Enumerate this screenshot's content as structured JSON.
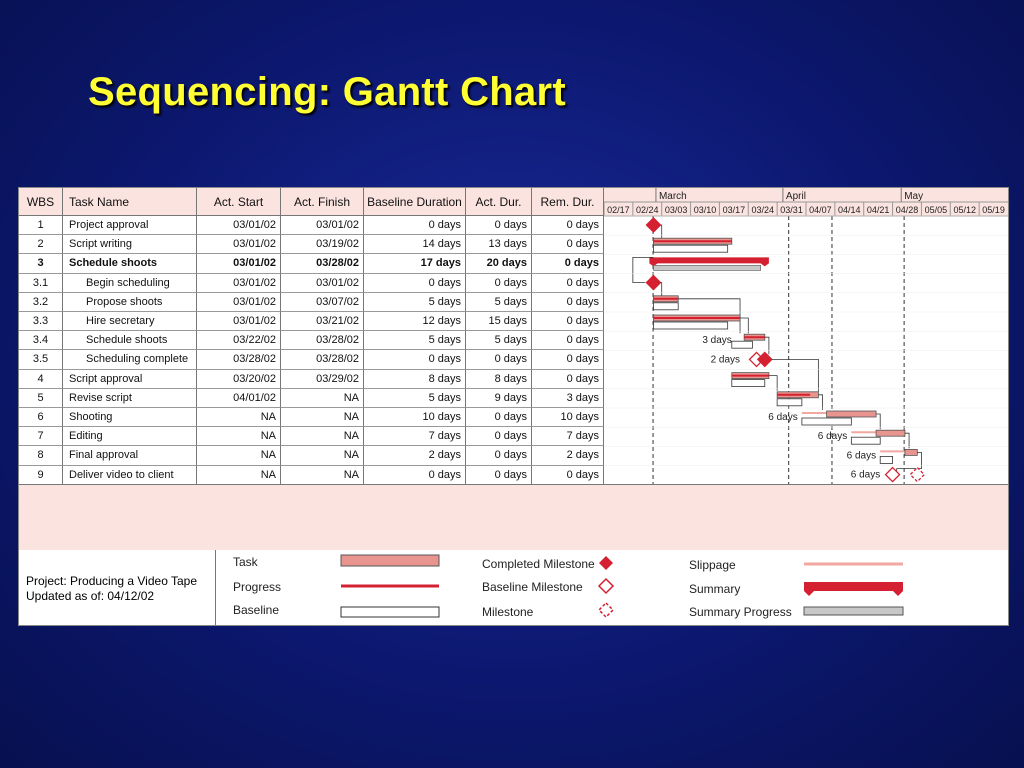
{
  "slide": {
    "title": "Sequencing: Gantt Chart"
  },
  "table": {
    "headers": [
      "WBS",
      "Task Name",
      "Act. Start",
      "Act. Finish",
      "Baseline Duration",
      "Act. Dur.",
      "Rem. Dur."
    ],
    "rows": [
      {
        "wbs": "1",
        "name": "Project approval",
        "start": "03/01/02",
        "finish": "03/01/02",
        "baseline": "0 days",
        "act": "0 days",
        "rem": "0 days",
        "bold": false,
        "indent": false
      },
      {
        "wbs": "2",
        "name": "Script writing",
        "start": "03/01/02",
        "finish": "03/19/02",
        "baseline": "14 days",
        "act": "13 days",
        "rem": "0 days",
        "bold": false,
        "indent": false
      },
      {
        "wbs": "3",
        "name": "Schedule shoots",
        "start": "03/01/02",
        "finish": "03/28/02",
        "baseline": "17 days",
        "act": "20 days",
        "rem": "0 days",
        "bold": true,
        "indent": false
      },
      {
        "wbs": "3.1",
        "name": "Begin scheduling",
        "start": "03/01/02",
        "finish": "03/01/02",
        "baseline": "0 days",
        "act": "0 days",
        "rem": "0 days",
        "bold": false,
        "indent": true
      },
      {
        "wbs": "3.2",
        "name": "Propose shoots",
        "start": "03/01/02",
        "finish": "03/07/02",
        "baseline": "5 days",
        "act": "5 days",
        "rem": "0 days",
        "bold": false,
        "indent": true
      },
      {
        "wbs": "3.3",
        "name": "Hire secretary",
        "start": "03/01/02",
        "finish": "03/21/02",
        "baseline": "12 days",
        "act": "15 days",
        "rem": "0 days",
        "bold": false,
        "indent": true
      },
      {
        "wbs": "3.4",
        "name": "Schedule shoots",
        "start": "03/22/02",
        "finish": "03/28/02",
        "baseline": "5 days",
        "act": "5 days",
        "rem": "0 days",
        "bold": false,
        "indent": true
      },
      {
        "wbs": "3.5",
        "name": "Scheduling complete",
        "start": "03/28/02",
        "finish": "03/28/02",
        "baseline": "0 days",
        "act": "0 days",
        "rem": "0 days",
        "bold": false,
        "indent": true
      },
      {
        "wbs": "4",
        "name": "Script approval",
        "start": "03/20/02",
        "finish": "03/29/02",
        "baseline": "8 days",
        "act": "8 days",
        "rem": "0 days",
        "bold": false,
        "indent": false
      },
      {
        "wbs": "5",
        "name": "Revise script",
        "start": "04/01/02",
        "finish": "NA",
        "baseline": "5 days",
        "act": "9 days",
        "rem": "3 days",
        "bold": false,
        "indent": false
      },
      {
        "wbs": "6",
        "name": "Shooting",
        "start": "NA",
        "finish": "NA",
        "baseline": "10 days",
        "act": "0 days",
        "rem": "10 days",
        "bold": false,
        "indent": false
      },
      {
        "wbs": "7",
        "name": "Editing",
        "start": "NA",
        "finish": "NA",
        "baseline": "7 days",
        "act": "0 days",
        "rem": "7 days",
        "bold": false,
        "indent": false
      },
      {
        "wbs": "8",
        "name": "Final approval",
        "start": "NA",
        "finish": "NA",
        "baseline": "2 days",
        "act": "0 days",
        "rem": "2 days",
        "bold": false,
        "indent": false
      },
      {
        "wbs": "9",
        "name": "Deliver video to client",
        "start": "NA",
        "finish": "NA",
        "baseline": "0 days",
        "act": "0 days",
        "rem": "0 days",
        "bold": false,
        "indent": false
      }
    ]
  },
  "timeline": {
    "months": [
      "March",
      "April",
      "May"
    ],
    "weeks": [
      "02/17",
      "02/24",
      "03/03",
      "03/10",
      "03/17",
      "03/24",
      "03/31",
      "04/07",
      "04/14",
      "04/21",
      "04/28",
      "05/05",
      "05/12",
      "05/19"
    ],
    "slip_labels": [
      "3 days",
      "2 days",
      "6 days",
      "6 days",
      "6 days",
      "6 days"
    ]
  },
  "footer": {
    "project": "Project: Producing a Video Tape",
    "updated": "Updated as of: 04/12/02"
  },
  "legend": {
    "task": "Task",
    "progress": "Progress",
    "baseline": "Baseline",
    "completed_milestone": "Completed Milestone",
    "baseline_milestone": "Baseline Milestone",
    "milestone": "Milestone",
    "slippage": "Slippage",
    "summary": "Summary",
    "summary_progress": "Summary Progress"
  },
  "colors": {
    "task": "#e8958f",
    "progress": "#d42030",
    "slippage": "#f0a8a0",
    "summary_progress": "#c8c8c8",
    "header": "#fbe3df"
  }
}
